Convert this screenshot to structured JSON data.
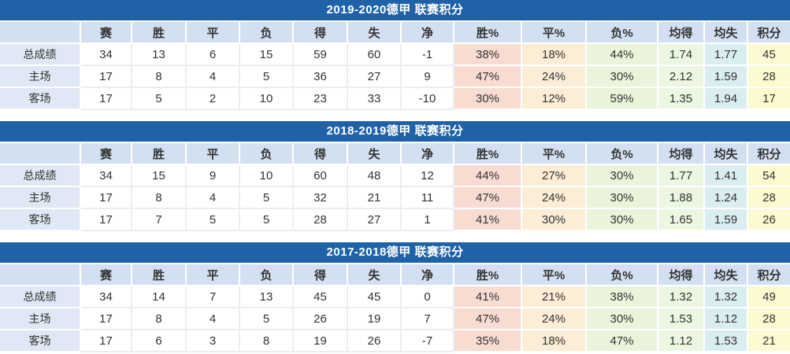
{
  "colors": {
    "title_bar": "#2062A8",
    "header_bg": "#D2E0F1",
    "label_bg": "#DFE8F4",
    "win_pct_bg": "#F8DCD2",
    "draw_pct_bg": "#FCEDD6",
    "loss_pct_bg": "#E9F4DA",
    "avg_for_bg": "#ECF7E1",
    "avg_against_bg": "#DAEDF1",
    "points_bg": "#FCFAD1",
    "text": "#333333",
    "title_text": "#FFFFFF"
  },
  "tables": [
    {
      "title": "2019-2020德甲 联赛积分",
      "headers": [
        "",
        "赛",
        "胜",
        "平",
        "负",
        "得",
        "失",
        "净",
        "胜%",
        "平%",
        "负%",
        "均得",
        "均失",
        "积分"
      ],
      "rows": [
        {
          "label": "总成绩",
          "values": [
            "34",
            "13",
            "6",
            "15",
            "59",
            "60",
            "-1",
            "38%",
            "18%",
            "44%",
            "1.74",
            "1.77",
            "45"
          ]
        },
        {
          "label": "主场",
          "values": [
            "17",
            "8",
            "4",
            "5",
            "36",
            "27",
            "9",
            "47%",
            "24%",
            "30%",
            "2.12",
            "1.59",
            "28"
          ]
        },
        {
          "label": "客场",
          "values": [
            "17",
            "5",
            "2",
            "10",
            "23",
            "33",
            "-10",
            "30%",
            "12%",
            "59%",
            "1.35",
            "1.94",
            "17"
          ]
        }
      ]
    },
    {
      "title": "2018-2019德甲 联赛积分",
      "headers": [
        "",
        "赛",
        "胜",
        "平",
        "负",
        "得",
        "失",
        "净",
        "胜%",
        "平%",
        "负%",
        "均得",
        "均失",
        "积分"
      ],
      "rows": [
        {
          "label": "总成绩",
          "values": [
            "34",
            "15",
            "9",
            "10",
            "60",
            "48",
            "12",
            "44%",
            "27%",
            "30%",
            "1.77",
            "1.41",
            "54"
          ]
        },
        {
          "label": "主场",
          "values": [
            "17",
            "8",
            "4",
            "5",
            "32",
            "21",
            "11",
            "47%",
            "24%",
            "30%",
            "1.88",
            "1.24",
            "28"
          ]
        },
        {
          "label": "客场",
          "values": [
            "17",
            "7",
            "5",
            "5",
            "28",
            "27",
            "1",
            "41%",
            "30%",
            "30%",
            "1.65",
            "1.59",
            "26"
          ]
        }
      ]
    },
    {
      "title": "2017-2018德甲 联赛积分",
      "headers": [
        "",
        "赛",
        "胜",
        "平",
        "负",
        "得",
        "失",
        "净",
        "胜%",
        "平%",
        "负%",
        "均得",
        "均失",
        "积分"
      ],
      "rows": [
        {
          "label": "总成绩",
          "values": [
            "34",
            "14",
            "7",
            "13",
            "45",
            "45",
            "0",
            "41%",
            "21%",
            "38%",
            "1.32",
            "1.32",
            "49"
          ]
        },
        {
          "label": "主场",
          "values": [
            "17",
            "8",
            "4",
            "5",
            "26",
            "19",
            "7",
            "47%",
            "24%",
            "30%",
            "1.53",
            "1.12",
            "28"
          ]
        },
        {
          "label": "客场",
          "values": [
            "17",
            "6",
            "3",
            "8",
            "19",
            "26",
            "-7",
            "35%",
            "18%",
            "47%",
            "1.12",
            "1.53",
            "21"
          ]
        }
      ]
    }
  ]
}
